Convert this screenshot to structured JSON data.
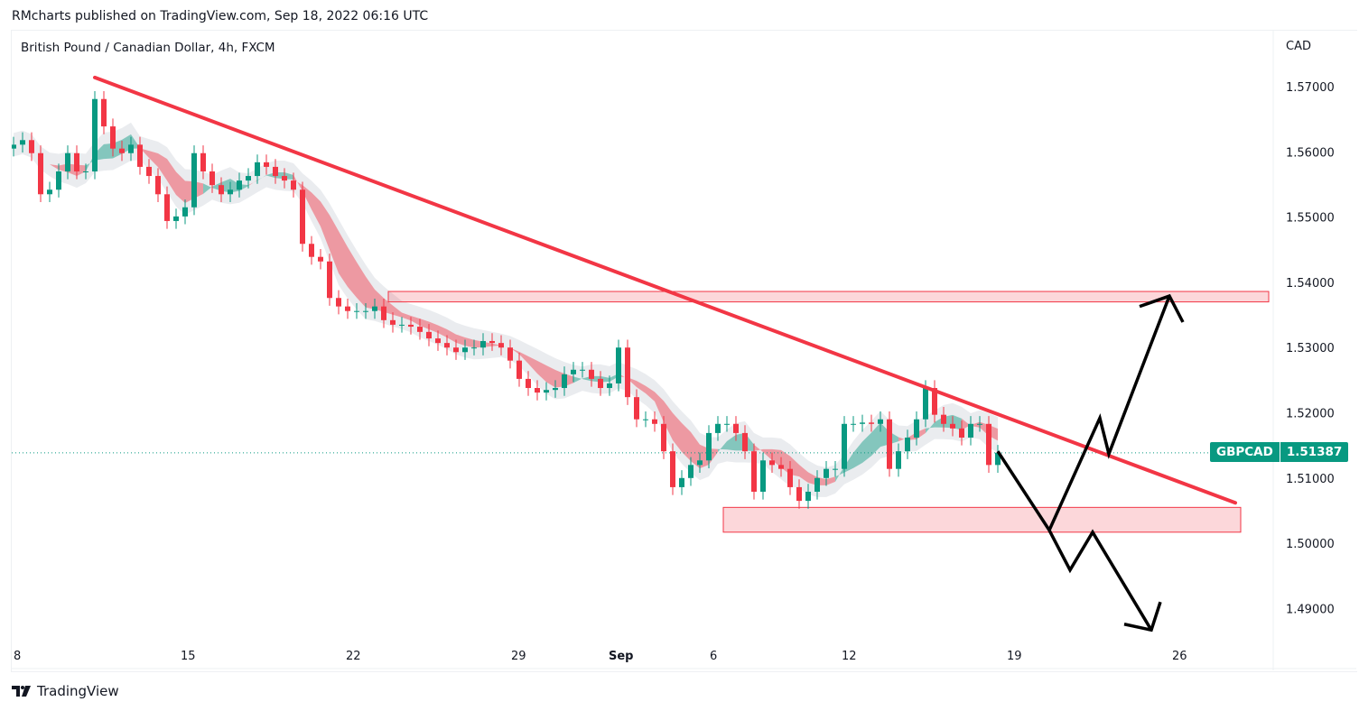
{
  "header": {
    "published": "RMcharts published on TradingView.com, Sep 18, 2022 06:16 UTC",
    "symbol_title": "British Pound / Canadian Dollar, 4h, FXCM"
  },
  "footer": {
    "brand": "TradingView"
  },
  "price_tag": {
    "symbol": "GBPCAD",
    "price": "1.51387",
    "color": "#089981"
  },
  "chart_data": {
    "type": "candlestick",
    "currency_label": "CAD",
    "ylim": [
      1.484,
      1.5785
    ],
    "y_ticks": [
      "1.57000",
      "1.56000",
      "1.55000",
      "1.54000",
      "1.53000",
      "1.52000",
      "1.51000",
      "1.50000",
      "1.49000"
    ],
    "x_ticks": [
      {
        "label": "8",
        "bar": 0.3
      },
      {
        "label": "15",
        "bar": 18.8
      },
      {
        "label": "22",
        "bar": 37.1
      },
      {
        "label": "29",
        "bar": 55.4
      },
      {
        "label": "Sep",
        "bar": 66.2,
        "bold": true
      },
      {
        "label": "6",
        "bar": 77.4
      },
      {
        "label": "12",
        "bar": 92
      },
      {
        "label": "19",
        "bar": 110.3
      },
      {
        "label": "26",
        "bar": 128.6
      }
    ],
    "colors": {
      "up": "#089981",
      "down": "#f23645",
      "trendline": "#f23645",
      "zone": "#f23645",
      "projection": "#000000"
    },
    "first_open": 1.5605,
    "close": [
      1.5611,
      1.5618,
      1.5598,
      1.5535,
      1.5542,
      1.557,
      1.5598,
      1.557,
      1.557,
      1.5681,
      1.5639,
      1.5605,
      1.5598,
      1.5611,
      1.5577,
      1.5563,
      1.5535,
      1.5494,
      1.5501,
      1.5515,
      1.5598,
      1.557,
      1.5549,
      1.5535,
      1.5542,
      1.5556,
      1.5563,
      1.5584,
      1.5577,
      1.5563,
      1.5556,
      1.5542,
      1.5459,
      1.5439,
      1.5432,
      1.5376,
      1.5363,
      1.5356,
      1.5356,
      1.5356,
      1.5363,
      1.5342,
      1.5335,
      1.5335,
      1.5332,
      1.5324,
      1.5314,
      1.5307,
      1.53,
      1.5293,
      1.53,
      1.53,
      1.531,
      1.5307,
      1.53,
      1.528,
      1.5252,
      1.5238,
      1.5231,
      1.5235,
      1.5238,
      1.5259,
      1.5266,
      1.5266,
      1.5252,
      1.5238,
      1.5245,
      1.53,
      1.5224,
      1.519,
      1.519,
      1.5183,
      1.5141,
      1.5086,
      1.51,
      1.512,
      1.5127,
      1.5169,
      1.5183,
      1.5183,
      1.5169,
      1.5141,
      1.5079,
      1.5127,
      1.512,
      1.5114,
      1.5086,
      1.5065,
      1.5079,
      1.51,
      1.5114,
      1.5114,
      1.5183,
      1.5183,
      1.5185,
      1.5183,
      1.519,
      1.5114,
      1.5141,
      1.5162,
      1.519,
      1.5238,
      1.5197,
      1.5183,
      1.5176,
      1.5162,
      1.5183,
      1.5183,
      1.512,
      1.51387
    ],
    "last_price": 1.51387,
    "trendline": [
      [
        9,
        1.5714
      ],
      [
        135.3,
        1.5062
      ]
    ],
    "zones": [
      {
        "from_bar": 41.5,
        "to_bar": 139,
        "top": 1.5386,
        "bottom": 1.537
      },
      {
        "from_bar": 78.6,
        "to_bar": 135.9,
        "top": 1.5055,
        "bottom": 1.5017
      }
    ],
    "projections": [
      {
        "points": [
          [
            109,
            1.5141
          ],
          [
            114.7,
            1.502
          ],
          [
            120.3,
            1.5192
          ],
          [
            121.3,
            1.5137
          ],
          [
            128,
            1.5379
          ]
        ],
        "arrowhead": [
          [
            124.7,
            1.5363
          ],
          [
            128,
            1.5379
          ],
          [
            129.5,
            1.5339
          ]
        ]
      },
      {
        "points": [
          [
            114.7,
            1.502
          ],
          [
            117,
            1.4959
          ],
          [
            119.5,
            1.5017
          ],
          [
            126,
            1.4867
          ]
        ],
        "arrowhead": [
          [
            123,
            1.4876
          ],
          [
            126,
            1.4867
          ],
          [
            127,
            1.491
          ]
        ]
      }
    ]
  }
}
